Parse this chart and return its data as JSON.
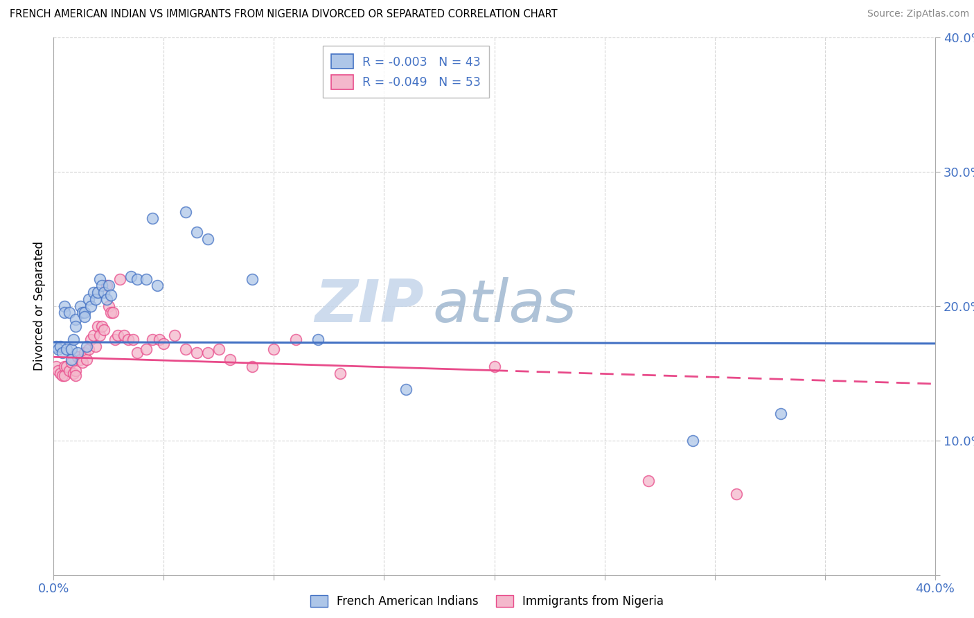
{
  "title": "FRENCH AMERICAN INDIAN VS IMMIGRANTS FROM NIGERIA DIVORCED OR SEPARATED CORRELATION CHART",
  "source": "Source: ZipAtlas.com",
  "ylabel": "Divorced or Separated",
  "legend_blue_r": "R = -0.003",
  "legend_blue_n": "N = 43",
  "legend_pink_r": "R = -0.049",
  "legend_pink_n": "N = 53",
  "legend_label_blue": "French American Indians",
  "legend_label_pink": "Immigrants from Nigeria",
  "xlim": [
    0.0,
    0.4
  ],
  "ylim": [
    0.0,
    0.4
  ],
  "blue_scatter": [
    [
      0.001,
      0.17
    ],
    [
      0.002,
      0.168
    ],
    [
      0.003,
      0.17
    ],
    [
      0.004,
      0.165
    ],
    [
      0.005,
      0.2
    ],
    [
      0.005,
      0.195
    ],
    [
      0.006,
      0.168
    ],
    [
      0.007,
      0.195
    ],
    [
      0.008,
      0.168
    ],
    [
      0.008,
      0.16
    ],
    [
      0.009,
      0.175
    ],
    [
      0.01,
      0.19
    ],
    [
      0.01,
      0.185
    ],
    [
      0.011,
      0.165
    ],
    [
      0.012,
      0.2
    ],
    [
      0.013,
      0.195
    ],
    [
      0.014,
      0.195
    ],
    [
      0.014,
      0.192
    ],
    [
      0.015,
      0.17
    ],
    [
      0.016,
      0.205
    ],
    [
      0.017,
      0.2
    ],
    [
      0.018,
      0.21
    ],
    [
      0.019,
      0.205
    ],
    [
      0.02,
      0.21
    ],
    [
      0.021,
      0.22
    ],
    [
      0.022,
      0.215
    ],
    [
      0.023,
      0.21
    ],
    [
      0.024,
      0.205
    ],
    [
      0.025,
      0.215
    ],
    [
      0.026,
      0.208
    ],
    [
      0.035,
      0.222
    ],
    [
      0.038,
      0.22
    ],
    [
      0.042,
      0.22
    ],
    [
      0.045,
      0.265
    ],
    [
      0.047,
      0.215
    ],
    [
      0.06,
      0.27
    ],
    [
      0.065,
      0.255
    ],
    [
      0.07,
      0.25
    ],
    [
      0.09,
      0.22
    ],
    [
      0.12,
      0.175
    ],
    [
      0.16,
      0.138
    ],
    [
      0.29,
      0.1
    ],
    [
      0.33,
      0.12
    ]
  ],
  "pink_scatter": [
    [
      0.001,
      0.155
    ],
    [
      0.002,
      0.152
    ],
    [
      0.003,
      0.15
    ],
    [
      0.004,
      0.148
    ],
    [
      0.005,
      0.155
    ],
    [
      0.005,
      0.148
    ],
    [
      0.006,
      0.155
    ],
    [
      0.007,
      0.152
    ],
    [
      0.008,
      0.158
    ],
    [
      0.009,
      0.15
    ],
    [
      0.01,
      0.152
    ],
    [
      0.01,
      0.148
    ],
    [
      0.011,
      0.162
    ],
    [
      0.012,
      0.16
    ],
    [
      0.013,
      0.158
    ],
    [
      0.014,
      0.165
    ],
    [
      0.015,
      0.16
    ],
    [
      0.016,
      0.168
    ],
    [
      0.017,
      0.175
    ],
    [
      0.018,
      0.178
    ],
    [
      0.019,
      0.17
    ],
    [
      0.02,
      0.185
    ],
    [
      0.021,
      0.178
    ],
    [
      0.022,
      0.185
    ],
    [
      0.023,
      0.182
    ],
    [
      0.024,
      0.215
    ],
    [
      0.025,
      0.2
    ],
    [
      0.026,
      0.195
    ],
    [
      0.027,
      0.195
    ],
    [
      0.028,
      0.175
    ],
    [
      0.029,
      0.178
    ],
    [
      0.03,
      0.22
    ],
    [
      0.032,
      0.178
    ],
    [
      0.034,
      0.175
    ],
    [
      0.036,
      0.175
    ],
    [
      0.038,
      0.165
    ],
    [
      0.042,
      0.168
    ],
    [
      0.045,
      0.175
    ],
    [
      0.048,
      0.175
    ],
    [
      0.05,
      0.172
    ],
    [
      0.055,
      0.178
    ],
    [
      0.06,
      0.168
    ],
    [
      0.065,
      0.165
    ],
    [
      0.07,
      0.165
    ],
    [
      0.075,
      0.168
    ],
    [
      0.08,
      0.16
    ],
    [
      0.09,
      0.155
    ],
    [
      0.1,
      0.168
    ],
    [
      0.11,
      0.175
    ],
    [
      0.13,
      0.15
    ],
    [
      0.2,
      0.155
    ],
    [
      0.27,
      0.07
    ],
    [
      0.31,
      0.06
    ]
  ],
  "blue_line_color": "#4472C4",
  "pink_line_color": "#E84B8A",
  "blue_scatter_facecolor": "#AEC6E8",
  "pink_scatter_facecolor": "#F4B8CC",
  "background_color": "#FFFFFF",
  "grid_color": "#CCCCCC",
  "watermark_zip": "ZIP",
  "watermark_atlas": "atlas",
  "blue_trendline": [
    0.0,
    0.173,
    0.4,
    0.172
  ],
  "pink_trendline_solid": [
    0.0,
    0.162,
    0.2,
    0.152
  ],
  "pink_trendline_dashed": [
    0.2,
    0.152,
    0.4,
    0.142
  ]
}
